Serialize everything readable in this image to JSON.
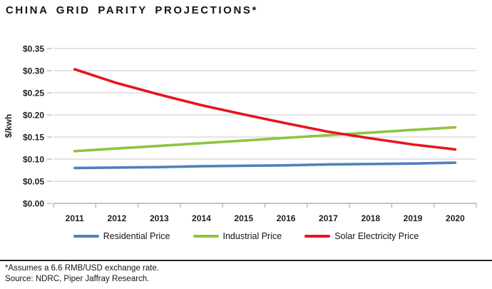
{
  "page": {
    "title": "CHINA GRID PARITY PROJECTIONS*",
    "footnote_line1": "*Assumes a 6.6 RMB/USD exchange rate.",
    "footnote_line2": "Source: NDRC, Piper Jaffray Research."
  },
  "chart_data": {
    "type": "line",
    "title": "CHINA GRID PARITY PROJECTIONS*",
    "categories": [
      "2011",
      "2012",
      "2013",
      "2014",
      "2015",
      "2016",
      "2017",
      "2018",
      "2019",
      "2020"
    ],
    "series": [
      {
        "name": "Residential Price",
        "color": "#4f81bd",
        "values": [
          0.08,
          0.081,
          0.082,
          0.084,
          0.085,
          0.086,
          0.088,
          0.089,
          0.09,
          0.092
        ]
      },
      {
        "name": "Industrial Price",
        "color": "#8cc540",
        "values": [
          0.118,
          0.124,
          0.13,
          0.136,
          0.142,
          0.148,
          0.154,
          0.16,
          0.166,
          0.172
        ]
      },
      {
        "name": "Solar Electricity Price",
        "color": "#e8141c",
        "values": [
          0.303,
          0.272,
          0.246,
          0.222,
          0.201,
          0.181,
          0.162,
          0.147,
          0.133,
          0.122
        ]
      }
    ],
    "xlabel": "",
    "ylabel": "$/kwh",
    "ylim": [
      0,
      0.35
    ],
    "ytick_step": 0.05,
    "ytick_prefix": "$",
    "grid": true,
    "legend_position": "bottom",
    "gridline_color": "#c8c8c8",
    "axis_color": "#a0a0a0"
  }
}
